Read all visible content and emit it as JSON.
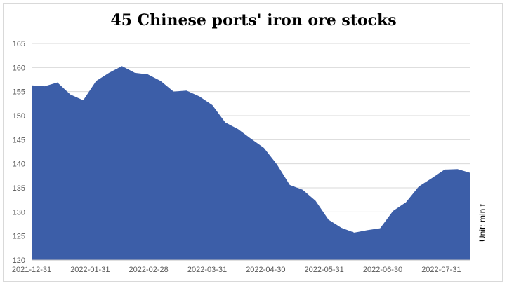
{
  "chart_data": {
    "type": "area",
    "title": "45 Chinese ports' iron ore stocks",
    "unit_label": "Unit: mln t",
    "ylim": [
      120,
      165
    ],
    "yticks": [
      120,
      125,
      130,
      135,
      140,
      145,
      150,
      155,
      160,
      165
    ],
    "x_tick_labels": [
      "2021-12-31",
      "2022-01-31",
      "2022-02-28",
      "2022-03-31",
      "2022-04-30",
      "2022-05-31",
      "2022-06-30",
      "2022-07-31"
    ],
    "grid": true,
    "color": "#3c5ea8",
    "values": [
      156.3,
      156.1,
      156.9,
      154.4,
      153.2,
      157.2,
      158.9,
      160.3,
      158.9,
      158.6,
      157.2,
      155.0,
      155.2,
      154.0,
      152.2,
      148.6,
      147.2,
      145.2,
      143.3,
      139.9,
      135.6,
      134.6,
      132.3,
      128.4,
      126.7,
      125.7,
      126.2,
      126.6,
      130.2,
      132.0,
      135.3,
      137.0,
      138.8,
      138.9,
      138.1
    ]
  }
}
